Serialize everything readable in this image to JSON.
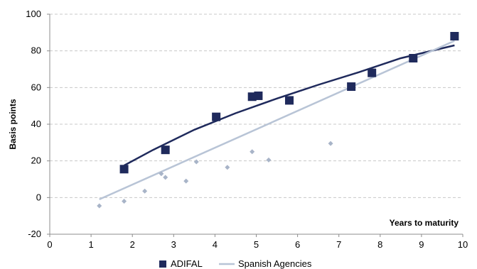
{
  "chart_data": {
    "type": "scatter",
    "title": "",
    "xlabel": "Years to maturity",
    "ylabel": "Basis points",
    "xlim": [
      0,
      10
    ],
    "ylim": [
      -20,
      100
    ],
    "x_ticks": [
      0,
      1,
      2,
      3,
      4,
      5,
      6,
      7,
      8,
      9,
      10
    ],
    "y_ticks": [
      -20,
      0,
      20,
      40,
      60,
      80,
      100
    ],
    "grid": "horizontal dashed",
    "legend_position": "bottom",
    "series": [
      {
        "name": "ADIFAL",
        "kind": "scatter",
        "marker": "square",
        "color": "#1f2a5c",
        "points": [
          [
            1.8,
            15.5
          ],
          [
            2.8,
            26
          ],
          [
            4.03,
            44
          ],
          [
            4.9,
            55
          ],
          [
            5.05,
            55.5
          ],
          [
            5.8,
            53
          ],
          [
            7.3,
            60.5
          ],
          [
            7.8,
            68
          ],
          [
            8.8,
            76
          ],
          [
            9.8,
            88
          ]
        ]
      },
      {
        "name": "ADIFAL",
        "kind": "trend",
        "color": "#1f2a5c",
        "points": [
          [
            1.8,
            17.5
          ],
          [
            2.5,
            26
          ],
          [
            3.5,
            37
          ],
          [
            4.5,
            46
          ],
          [
            5.5,
            54
          ],
          [
            6.5,
            61.5
          ],
          [
            7.5,
            68.5
          ],
          [
            8.5,
            76
          ],
          [
            9.8,
            83
          ]
        ]
      },
      {
        "name": "Spanish Agencies",
        "kind": "scatter",
        "marker": "diamond",
        "color": "#a8b4c8",
        "points": [
          [
            1.2,
            -4.5
          ],
          [
            1.8,
            -2
          ],
          [
            2.3,
            3.5
          ],
          [
            2.7,
            13
          ],
          [
            2.8,
            11
          ],
          [
            3.3,
            9
          ],
          [
            3.55,
            19.5
          ],
          [
            4.3,
            16.5
          ],
          [
            4.9,
            25
          ],
          [
            5.3,
            20.5
          ],
          [
            6.8,
            29.5
          ]
        ]
      },
      {
        "name": "Spanish Agencies",
        "kind": "trend",
        "color": "#b8c4d6",
        "points": [
          [
            1.2,
            -1
          ],
          [
            9.8,
            85.5
          ]
        ]
      }
    ]
  }
}
